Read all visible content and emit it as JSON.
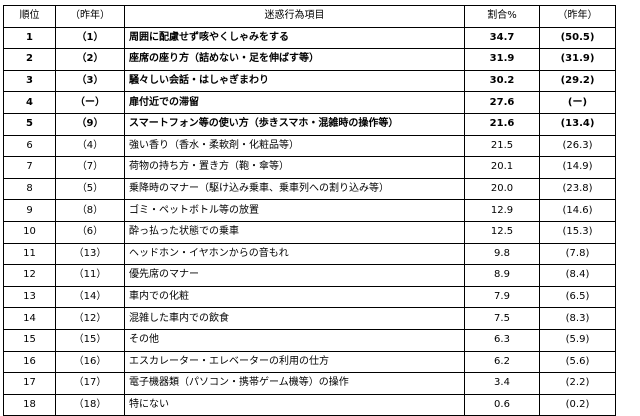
{
  "table": {
    "headers": {
      "rank": "順位",
      "prev_rank": "（昨年）",
      "item": "迷惑行為項目",
      "pct": "割合%",
      "prev_pct": "（昨年）"
    },
    "rows": [
      {
        "rank": "1",
        "prev_rank": "（1）",
        "item": "周囲に配慮せず咳やくしゃみをする",
        "pct": "34.7",
        "prev_pct": "(50.5)"
      },
      {
        "rank": "2",
        "prev_rank": "（2）",
        "item": "座席の座り方（詰めない・足を伸ばす等）",
        "pct": "31.9",
        "prev_pct": "(31.9)"
      },
      {
        "rank": "3",
        "prev_rank": "（3）",
        "item": "騒々しい会話・はしゃぎまわり",
        "pct": "30.2",
        "prev_pct": "(29.2)"
      },
      {
        "rank": "4",
        "prev_rank": "（ー）",
        "item": "扉付近での滞留",
        "pct": "27.6",
        "prev_pct": "(ー)"
      },
      {
        "rank": "5",
        "prev_rank": "（9）",
        "item": "スマートフォン等の使い方（歩きスマホ・混雑時の操作等）",
        "pct": "21.6",
        "prev_pct": "(13.4)"
      },
      {
        "rank": "6",
        "prev_rank": "（4）",
        "item": "強い香り（香水・柔軟剤・化粧品等）",
        "pct": "21.5",
        "prev_pct": "(26.3)"
      },
      {
        "rank": "7",
        "prev_rank": "（7）",
        "item": "荷物の持ち方・置き方（鞄・傘等）",
        "pct": "20.1",
        "prev_pct": "(14.9)"
      },
      {
        "rank": "8",
        "prev_rank": "（5）",
        "item": "乗降時のマナー（駆け込み乗車、乗車列への割り込み等）",
        "pct": "20.0",
        "prev_pct": "(23.8)"
      },
      {
        "rank": "9",
        "prev_rank": "（8）",
        "item": "ゴミ・ペットボトル等の放置",
        "pct": "12.9",
        "prev_pct": "(14.6)"
      },
      {
        "rank": "10",
        "prev_rank": "（6）",
        "item": "酔っ払った状態での乗車",
        "pct": "12.5",
        "prev_pct": "(15.3)"
      },
      {
        "rank": "11",
        "prev_rank": "（13）",
        "item": "ヘッドホン・イヤホンからの音もれ",
        "pct": "9.8",
        "prev_pct": "(7.8)"
      },
      {
        "rank": "12",
        "prev_rank": "（11）",
        "item": "優先席のマナー",
        "pct": "8.9",
        "prev_pct": "(8.4)"
      },
      {
        "rank": "13",
        "prev_rank": "（14）",
        "item": "車内での化粧",
        "pct": "7.9",
        "prev_pct": "(6.5)"
      },
      {
        "rank": "14",
        "prev_rank": "（12）",
        "item": "混雑した車内での飲食",
        "pct": "7.5",
        "prev_pct": "(8.3)"
      },
      {
        "rank": "15",
        "prev_rank": "（15）",
        "item": "その他",
        "pct": "6.3",
        "prev_pct": "(5.9)"
      },
      {
        "rank": "16",
        "prev_rank": "（16）",
        "item": "エスカレーター・エレベーターの利用の仕方",
        "pct": "6.2",
        "prev_pct": "(5.6)"
      },
      {
        "rank": "17",
        "prev_rank": "（17）",
        "item": "電子機器類（パソコン・携帯ゲーム機等）の操作",
        "pct": "3.4",
        "prev_pct": "(2.2)"
      },
      {
        "rank": "18",
        "prev_rank": "（18）",
        "item": "特にない",
        "pct": "0.6",
        "prev_pct": "(0.2)"
      }
    ]
  }
}
